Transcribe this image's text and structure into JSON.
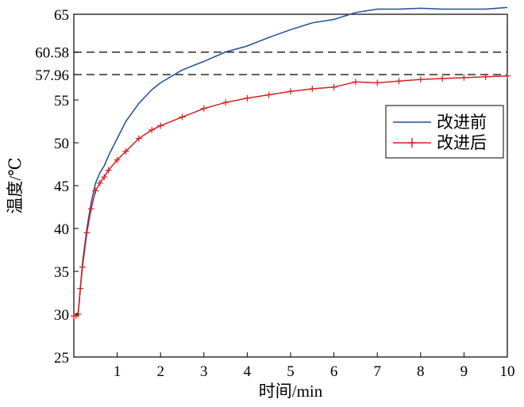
{
  "chart_data": {
    "type": "line",
    "xlabel": "时间/min",
    "ylabel": "温度/℃",
    "xlim": [
      0,
      10
    ],
    "ylim": [
      25,
      65
    ],
    "x_ticks": [
      1,
      2,
      3,
      4,
      5,
      6,
      7,
      8,
      9,
      10
    ],
    "y_ticks": [
      25,
      30,
      35,
      40,
      45,
      50,
      55,
      65
    ],
    "reference_lines": [
      {
        "value": 60.58,
        "label": "60.58"
      },
      {
        "value": 57.96,
        "label": "57.96"
      }
    ],
    "legend_position": "right",
    "series": [
      {
        "name": "改进前",
        "color": "#1f4e9a",
        "marker": "none",
        "x": [
          0.0,
          0.05,
          0.1,
          0.15,
          0.2,
          0.3,
          0.4,
          0.5,
          0.6,
          0.7,
          0.8,
          1.0,
          1.2,
          1.5,
          1.8,
          2.0,
          2.5,
          3.0,
          3.5,
          4.0,
          4.5,
          5.0,
          5.5,
          6.0,
          6.5,
          7.0,
          7.5,
          8.0,
          8.5,
          9.0,
          9.5,
          10.0
        ],
        "y": [
          29.8,
          29.8,
          30.2,
          33.0,
          36.0,
          40.0,
          43.0,
          45.3,
          46.5,
          47.3,
          48.5,
          50.5,
          52.5,
          54.6,
          56.2,
          57.0,
          58.5,
          59.5,
          60.6,
          61.3,
          62.3,
          63.2,
          64.0,
          64.4,
          65.2,
          65.6,
          65.6,
          65.7,
          65.6,
          65.6,
          65.6,
          65.8
        ]
      },
      {
        "name": "改进后",
        "color": "#d42020",
        "marker": "+",
        "x": [
          0.0,
          0.05,
          0.1,
          0.15,
          0.2,
          0.3,
          0.4,
          0.5,
          0.6,
          0.7,
          0.8,
          1.0,
          1.2,
          1.5,
          1.8,
          2.0,
          2.5,
          3.0,
          3.5,
          4.0,
          4.5,
          5.0,
          5.5,
          6.0,
          6.5,
          7.0,
          7.5,
          8.0,
          8.5,
          9.0,
          9.5,
          10.0
        ],
        "y": [
          29.8,
          29.8,
          30.0,
          33.0,
          35.5,
          39.5,
          42.3,
          44.4,
          45.3,
          46.0,
          46.8,
          48.0,
          49.0,
          50.5,
          51.5,
          52.0,
          53.0,
          54.0,
          54.7,
          55.2,
          55.6,
          56.0,
          56.3,
          56.5,
          57.1,
          57.0,
          57.2,
          57.4,
          57.5,
          57.6,
          57.7,
          57.8
        ]
      }
    ]
  }
}
